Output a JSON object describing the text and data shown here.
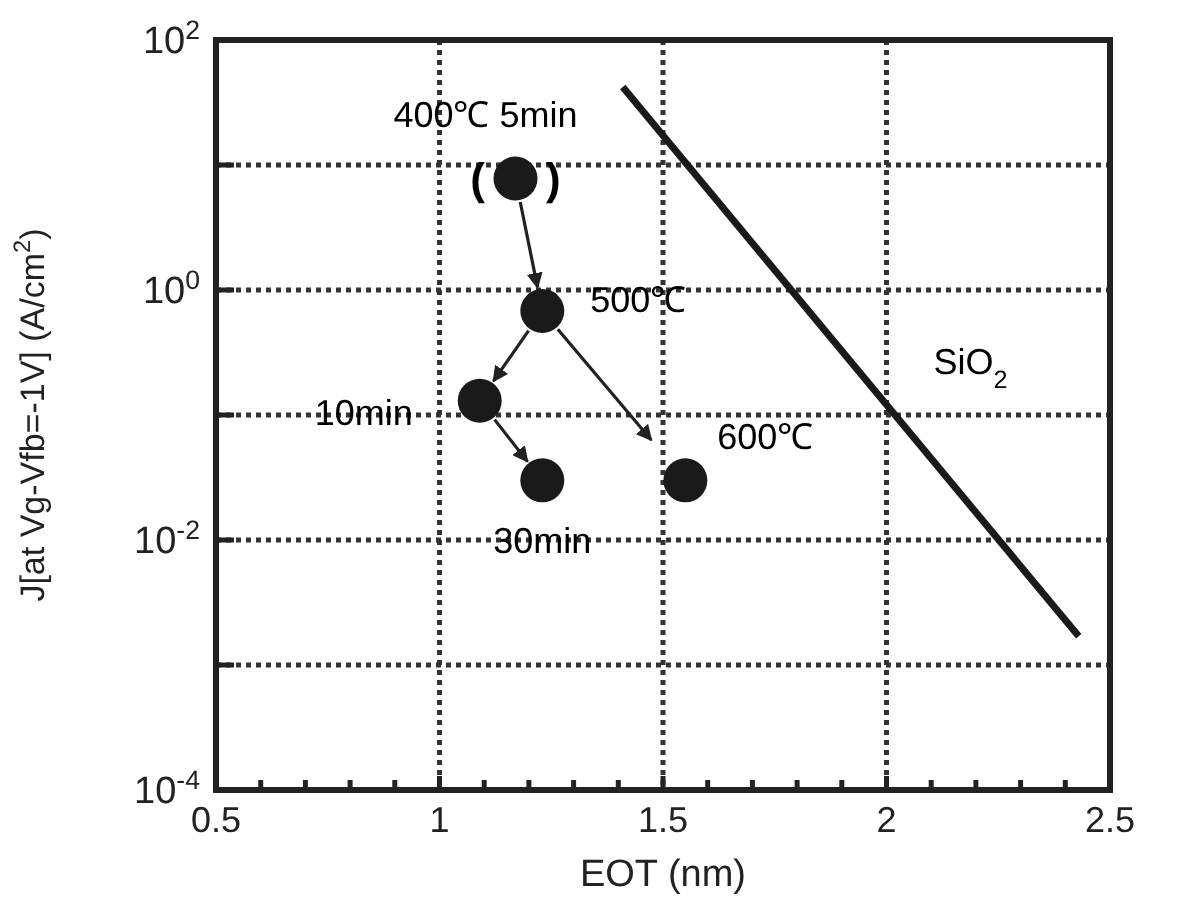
{
  "chart_data": {
    "type": "scatter",
    "xlabel": "EOT (nm)",
    "ylabel": "J[at Vg-Vfb=-1V] (A/cm$^{2}$)",
    "log": "y",
    "grid": true,
    "marker": "circle",
    "xlim": [
      0.5,
      2.5
    ],
    "ylim": [
      0.0001,
      100
    ],
    "xticks": [
      0.5,
      {
        "value": 0.6,
        "label": null
      },
      {
        "value": 0.7,
        "label": null
      },
      {
        "value": 0.8,
        "label": null
      },
      {
        "value": 0.9,
        "label": null
      },
      1,
      {
        "value": 1.1,
        "label": null
      },
      {
        "value": 1.2,
        "label": null
      },
      {
        "value": 1.3,
        "label": null
      },
      {
        "value": 1.4,
        "label": null
      },
      1.5,
      {
        "value": 1.6,
        "label": null
      },
      {
        "value": 1.7,
        "label": null
      },
      {
        "value": 1.8,
        "label": null
      },
      {
        "value": 1.9,
        "label": null
      },
      2,
      {
        "value": 2.1,
        "label": null
      },
      {
        "value": 2.2,
        "label": null
      },
      {
        "value": 2.3,
        "label": null
      },
      {
        "value": 2.4,
        "label": null
      },
      2.5
    ],
    "yticks": [
      {
        "value": 0.0001,
        "label": "10$^{-4}$"
      },
      {
        "value": 0.001,
        "label": null
      },
      {
        "value": 0.01,
        "label": "10$^{-2}$"
      },
      {
        "value": 0.1,
        "label": null
      },
      {
        "value": 1,
        "label": "10$^{0}$"
      },
      {
        "value": 10,
        "label": null
      },
      {
        "value": 100,
        "label": "10$^{2}$"
      }
    ],
    "series": [
      {
        "color": "#1a1a1a",
        "x": [
          1.17,
          1.23,
          1.09,
          1.23,
          1.55
        ],
        "values": [
          7.8,
          0.68,
          0.13,
          0.03,
          0.03
        ]
      },
      {
        "type": "line",
        "color": "#1a1a1a",
        "line_style": "solid",
        "marker": "none",
        "x": [
          1.41,
          2.43
        ],
        "values": [
          42,
          0.0017
        ]
      }
    ],
    "annotations": [
      {
        "text": "400℃ 5min",
        "x": 1.17,
        "y": 7.8
      },
      {
        "text": "(     )",
        "x": 1.17,
        "y": 7.8
      },
      {
        "text": "500℃",
        "x": 1.23,
        "y": 0.68
      },
      {
        "text": "10min",
        "x": 1.09,
        "y": 0.13
      },
      {
        "text": "30min",
        "x": 1.23,
        "y": 0.03
      },
      {
        "text": "600℃",
        "x": 1.55,
        "y": 0.03
      },
      {
        "text": "SiO$_{2}$",
        "x": 2.0,
        "y": 0.12
      }
    ]
  }
}
